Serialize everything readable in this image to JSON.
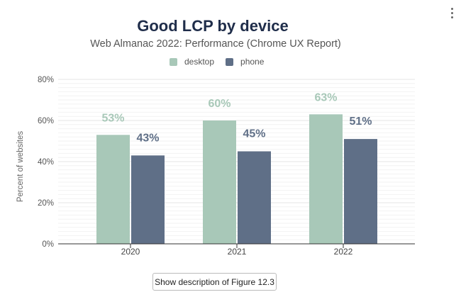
{
  "title": "Good LCP by device",
  "subtitle": "Web Almanac 2022: Performance (Chrome UX Report)",
  "menu_icon": "vertical-ellipsis-icon",
  "description_button": "Show description of Figure 12.3",
  "colors": {
    "desktop": "#a8c8b8",
    "phone": "#5f6f87",
    "title": "#1f2d4a"
  },
  "chart_data": {
    "type": "bar",
    "title": "Good LCP by device",
    "subtitle": "Web Almanac 2022: Performance (Chrome UX Report)",
    "xlabel": "",
    "ylabel": "Percent of websites",
    "categories": [
      "2020",
      "2021",
      "2022"
    ],
    "series": [
      {
        "name": "desktop",
        "values": [
          53,
          60,
          63
        ],
        "labels": [
          "53%",
          "60%",
          "63%"
        ]
      },
      {
        "name": "phone",
        "values": [
          43,
          45,
          51
        ],
        "labels": [
          "43%",
          "45%",
          "51%"
        ]
      }
    ],
    "ylim": [
      0,
      80
    ],
    "yticks": [
      0,
      20,
      40,
      60,
      80
    ],
    "ytick_labels": [
      "0%",
      "20%",
      "40%",
      "60%",
      "80%"
    ],
    "grid": true,
    "legend": "top-center"
  }
}
